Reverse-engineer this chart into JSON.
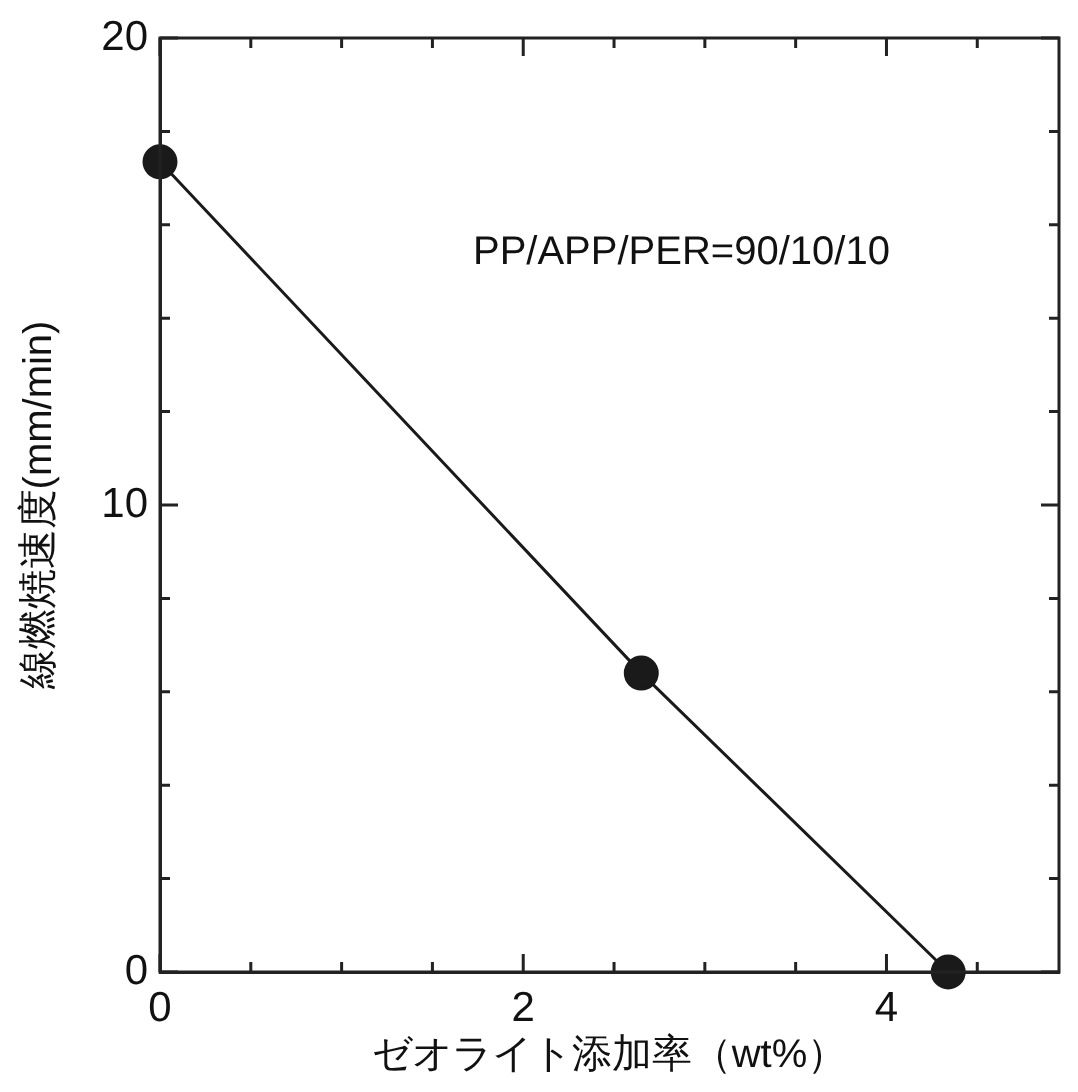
{
  "chart_data": {
    "type": "line",
    "xlabel": "ゼオライト添加率（wt%）",
    "ylabel": "線燃焼速度(mm/min)",
    "x": [
      0,
      2.65,
      4.34
    ],
    "series": [
      {
        "color": "#1a1a1a",
        "values": [
          17.35,
          6.4,
          0
        ]
      }
    ],
    "xlim": [
      0,
      4.95
    ],
    "xticks": [
      0,
      {
        "value": 0.5,
        "label": null
      },
      {
        "value": 1,
        "label": null
      },
      {
        "value": 1.5,
        "label": null
      },
      2,
      {
        "value": 2.5,
        "label": null
      },
      {
        "value": 3,
        "label": null
      },
      {
        "value": 3.5,
        "label": null
      },
      4,
      {
        "value": 4.5,
        "label": null
      }
    ],
    "ylim": [
      0,
      20
    ],
    "yticks": [
      0,
      {
        "value": 2,
        "label": null
      },
      {
        "value": 4,
        "label": null
      },
      {
        "value": 6,
        "label": null
      },
      {
        "value": 8,
        "label": null
      },
      10,
      {
        "value": 12,
        "label": null
      },
      {
        "value": 14,
        "label": null
      },
      {
        "value": 16,
        "label": null
      },
      {
        "value": 18,
        "label": null
      },
      20
    ],
    "annotations": [
      "PP/APP/PER=90/10/10"
    ],
    "marker": "circle",
    "line_style": "solid",
    "grid": false,
    "legend": false
  }
}
